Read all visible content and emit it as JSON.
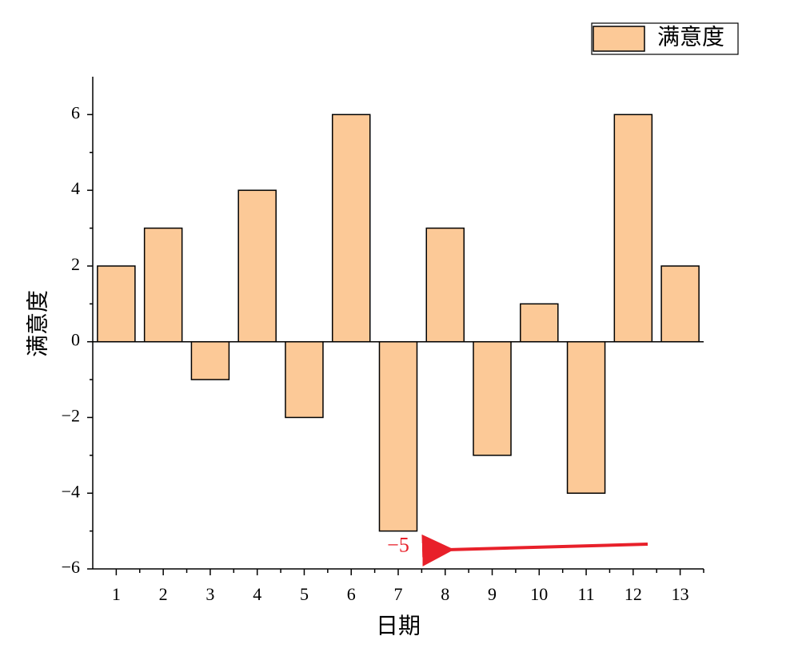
{
  "chart_data": {
    "type": "bar",
    "x_label": "日期",
    "y_label": "满意度",
    "categories": [
      "1",
      "2",
      "3",
      "4",
      "5",
      "6",
      "7",
      "8",
      "9",
      "10",
      "11",
      "12",
      "13"
    ],
    "series": [
      {
        "name": "满意度",
        "color": "#fcc997",
        "values": [
          2,
          3,
          -1,
          4,
          -2,
          6,
          -5,
          3,
          -3,
          1,
          -4,
          6,
          2
        ],
        "value_labels": [
          null,
          null,
          null,
          null,
          null,
          null,
          "−5",
          null,
          null,
          null,
          null,
          null,
          null
        ]
      }
    ],
    "ylim": [
      -6,
      7
    ],
    "yticks": [
      {
        "value": -6,
        "label": "−6"
      },
      {
        "value": -4,
        "label": "−4"
      },
      {
        "value": -2,
        "label": "−2"
      },
      0,
      2,
      4,
      6
    ],
    "legend": "top-right",
    "grid": false
  }
}
